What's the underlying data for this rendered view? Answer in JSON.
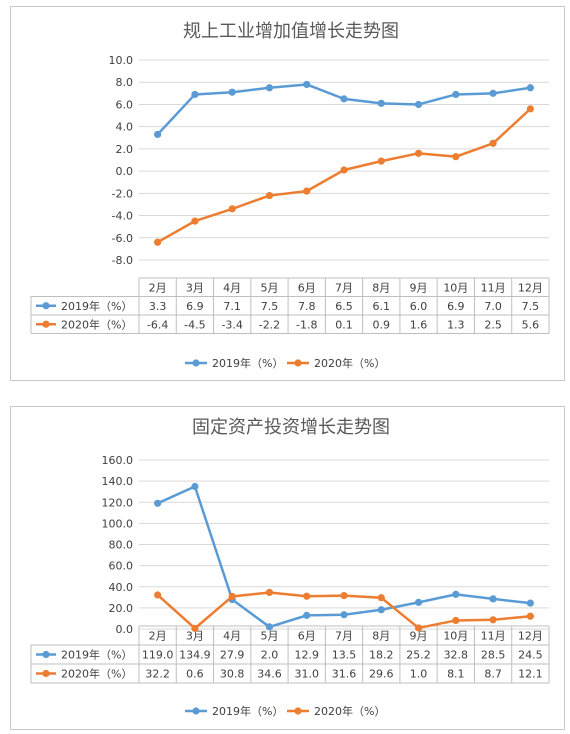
{
  "charts": [
    {
      "type": "line",
      "title": "规上工业增加值增长走势图",
      "categories": [
        "2月",
        "3月",
        "4月",
        "5月",
        "6月",
        "7月",
        "8月",
        "9月",
        "10月",
        "11月",
        "12月"
      ],
      "ylim": [
        -8,
        10
      ],
      "yticks": [
        10,
        8,
        6,
        4,
        2,
        0,
        -2,
        -4,
        -6,
        -8
      ],
      "tick_labels": [
        "10.0",
        "8.0",
        "6.0",
        "4.0",
        "2.0",
        "0.0",
        "-2.0",
        "-4.0",
        "-6.0",
        "-8.0"
      ],
      "series": [
        {
          "name": "2019年（%）",
          "color": "#5b9bd5",
          "values": [
            3.3,
            6.9,
            7.1,
            7.5,
            7.8,
            6.5,
            6.1,
            6.0,
            6.9,
            7.0,
            7.5
          ],
          "labels": [
            "3.3",
            "6.9",
            "7.1",
            "7.5",
            "7.8",
            "6.5",
            "6.1",
            "6.0",
            "6.9",
            "7.0",
            "7.5"
          ]
        },
        {
          "name": "2020年（%）",
          "color": "#ed7d31",
          "values": [
            -6.4,
            -4.5,
            -3.4,
            -2.2,
            -1.8,
            0.1,
            0.9,
            1.6,
            1.3,
            2.5,
            5.6
          ],
          "labels": [
            "-6.4",
            "-4.5",
            "-3.4",
            "-2.2",
            "-1.8",
            "0.1",
            "0.9",
            "1.6",
            "1.3",
            "2.5",
            "5.6"
          ]
        }
      ],
      "legend_position": "bottom",
      "grid": true,
      "data_table": true
    },
    {
      "type": "line",
      "title": "固定资产投资增长走势图",
      "categories": [
        "2月",
        "3月",
        "4月",
        "5月",
        "6月",
        "7月",
        "8月",
        "9月",
        "10月",
        "11月",
        "12月"
      ],
      "ylim": [
        0,
        160
      ],
      "yticks": [
        160,
        140,
        120,
        100,
        80,
        60,
        40,
        20,
        0
      ],
      "tick_labels": [
        "160.0",
        "140.0",
        "120.0",
        "100.0",
        "80.0",
        "60.0",
        "40.0",
        "20.0",
        "0.0"
      ],
      "series": [
        {
          "name": "2019年（%）",
          "color": "#5b9bd5",
          "values": [
            119.0,
            134.9,
            27.9,
            2.0,
            12.9,
            13.5,
            18.2,
            25.2,
            32.8,
            28.5,
            24.5
          ],
          "labels": [
            "119.0",
            "134.9",
            "27.9",
            "2.0",
            "12.9",
            "13.5",
            "18.2",
            "25.2",
            "32.8",
            "28.5",
            "24.5"
          ]
        },
        {
          "name": "2020年（%）",
          "color": "#ed7d31",
          "values": [
            32.2,
            0.6,
            30.8,
            34.6,
            31.0,
            31.6,
            29.6,
            1.0,
            8.1,
            8.7,
            12.1
          ],
          "labels": [
            "32.2",
            "0.6",
            "30.8",
            "34.6",
            "31.0",
            "31.6",
            "29.6",
            "1.0",
            "8.1",
            "8.7",
            "12.1"
          ]
        }
      ],
      "legend_position": "bottom",
      "grid": true,
      "data_table": true
    }
  ]
}
